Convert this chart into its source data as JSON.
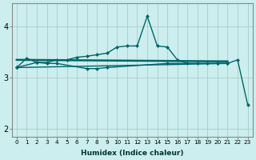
{
  "xlabel": "Humidex (Indice chaleur)",
  "background_color": "#cceeee",
  "grid_color": "#aacccc",
  "line_color": "#006666",
  "x_values": [
    0,
    1,
    2,
    3,
    4,
    5,
    6,
    7,
    8,
    9,
    10,
    11,
    12,
    13,
    14,
    15,
    16,
    17,
    18,
    19,
    20,
    21,
    22,
    23
  ],
  "line1_x": [
    0,
    1,
    2,
    3,
    4,
    5,
    6,
    7,
    8,
    9,
    10,
    11,
    12,
    13,
    14,
    15,
    16,
    17,
    18,
    19,
    20,
    21
  ],
  "line1_y": [
    3.2,
    3.38,
    3.3,
    3.3,
    3.35,
    3.35,
    3.4,
    3.42,
    3.45,
    3.48,
    3.6,
    3.62,
    3.62,
    4.2,
    3.62,
    3.6,
    3.35,
    3.28,
    3.28,
    3.28,
    3.28,
    3.28
  ],
  "line2_x": [
    0,
    2,
    3,
    4,
    7,
    8,
    9,
    15,
    20,
    21
  ],
  "line2_y": [
    3.2,
    3.3,
    3.28,
    3.28,
    3.18,
    3.18,
    3.2,
    3.28,
    3.28,
    3.28
  ],
  "line3_x": [
    0,
    21,
    22,
    23
  ],
  "line3_y": [
    3.2,
    3.28,
    3.35,
    2.48
  ],
  "trend_x": [
    0,
    21
  ],
  "trend_y": [
    3.35,
    3.32
  ],
  "ylim": [
    1.85,
    4.45
  ],
  "yticks": [
    2,
    3,
    4
  ],
  "xlim": [
    -0.5,
    23.5
  ]
}
